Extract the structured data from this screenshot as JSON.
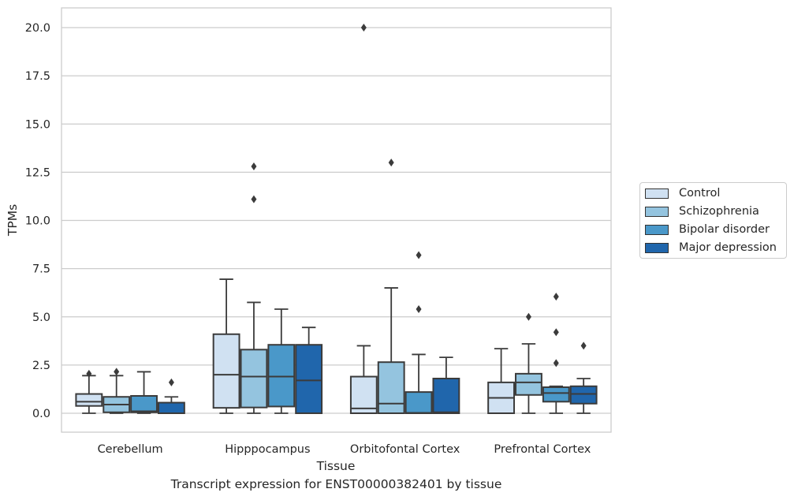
{
  "chart_data": {
    "type": "box",
    "caption": "Transcript expression for ENST00000382401 by tissue",
    "xlabel": "Tissue",
    "ylabel": "TPMs",
    "ylim": [
      -1,
      21
    ],
    "yticks": [
      "0.0",
      "2.5",
      "5.0",
      "7.5",
      "10.0",
      "12.5",
      "15.0",
      "17.5",
      "20.0"
    ],
    "grid": true,
    "legend_position": "right",
    "categories": [
      "Cerebellum",
      "Hipppocampus",
      "Orbitofontal Cortex",
      "Prefrontal Cortex"
    ],
    "series": [
      {
        "name": "Control",
        "color": "#d0e1f2",
        "boxes": [
          {
            "min": 0.0,
            "q1": 0.38,
            "median": 0.6,
            "q3": 1.0,
            "max": 1.95,
            "outliers": [
              2.05
            ]
          },
          {
            "min": 0.0,
            "q1": 0.28,
            "median": 2.0,
            "q3": 4.1,
            "max": 6.95,
            "outliers": []
          },
          {
            "min": 0.0,
            "q1": 0.0,
            "median": 0.25,
            "q3": 1.9,
            "max": 3.5,
            "outliers": [
              20.0
            ]
          },
          {
            "min": 0.0,
            "q1": 0.0,
            "median": 0.8,
            "q3": 1.6,
            "max": 3.35,
            "outliers": []
          }
        ]
      },
      {
        "name": "Schizophrenia",
        "color": "#94c4df",
        "boxes": [
          {
            "min": 0.0,
            "q1": 0.05,
            "median": 0.45,
            "q3": 0.85,
            "max": 1.95,
            "outliers": [
              2.15
            ]
          },
          {
            "min": 0.0,
            "q1": 0.3,
            "median": 1.9,
            "q3": 3.3,
            "max": 5.75,
            "outliers": [
              12.8,
              11.1
            ]
          },
          {
            "min": 0.0,
            "q1": 0.0,
            "median": 0.5,
            "q3": 2.65,
            "max": 6.5,
            "outliers": [
              13.0
            ]
          },
          {
            "min": 0.0,
            "q1": 0.95,
            "median": 1.6,
            "q3": 2.05,
            "max": 3.6,
            "outliers": [
              5.0
            ]
          }
        ]
      },
      {
        "name": "Bipolar disorder",
        "color": "#4a98c9",
        "boxes": [
          {
            "min": 0.0,
            "q1": 0.05,
            "median": 0.1,
            "q3": 0.9,
            "max": 2.15,
            "outliers": []
          },
          {
            "min": 0.0,
            "q1": 0.35,
            "median": 1.9,
            "q3": 3.55,
            "max": 5.4,
            "outliers": []
          },
          {
            "min": 0.0,
            "q1": 0.0,
            "median": 0.02,
            "q3": 1.1,
            "max": 3.05,
            "outliers": [
              8.2,
              5.4
            ]
          },
          {
            "min": 0.0,
            "q1": 0.6,
            "median": 1.05,
            "q3": 1.35,
            "max": 1.4,
            "outliers": [
              6.05,
              4.2,
              2.6
            ]
          }
        ]
      },
      {
        "name": "Major depression",
        "color": "#2066ac",
        "boxes": [
          {
            "min": 0.0,
            "q1": 0.0,
            "median": 0.0,
            "q3": 0.55,
            "max": 0.85,
            "outliers": [
              1.6
            ]
          },
          {
            "min": 0.0,
            "q1": 0.0,
            "median": 1.7,
            "q3": 3.55,
            "max": 4.45,
            "outliers": []
          },
          {
            "min": 0.0,
            "q1": 0.0,
            "median": 0.05,
            "q3": 1.8,
            "max": 2.9,
            "outliers": []
          },
          {
            "min": 0.0,
            "q1": 0.5,
            "median": 1.0,
            "q3": 1.4,
            "max": 1.8,
            "outliers": [
              3.5
            ]
          }
        ]
      }
    ]
  }
}
